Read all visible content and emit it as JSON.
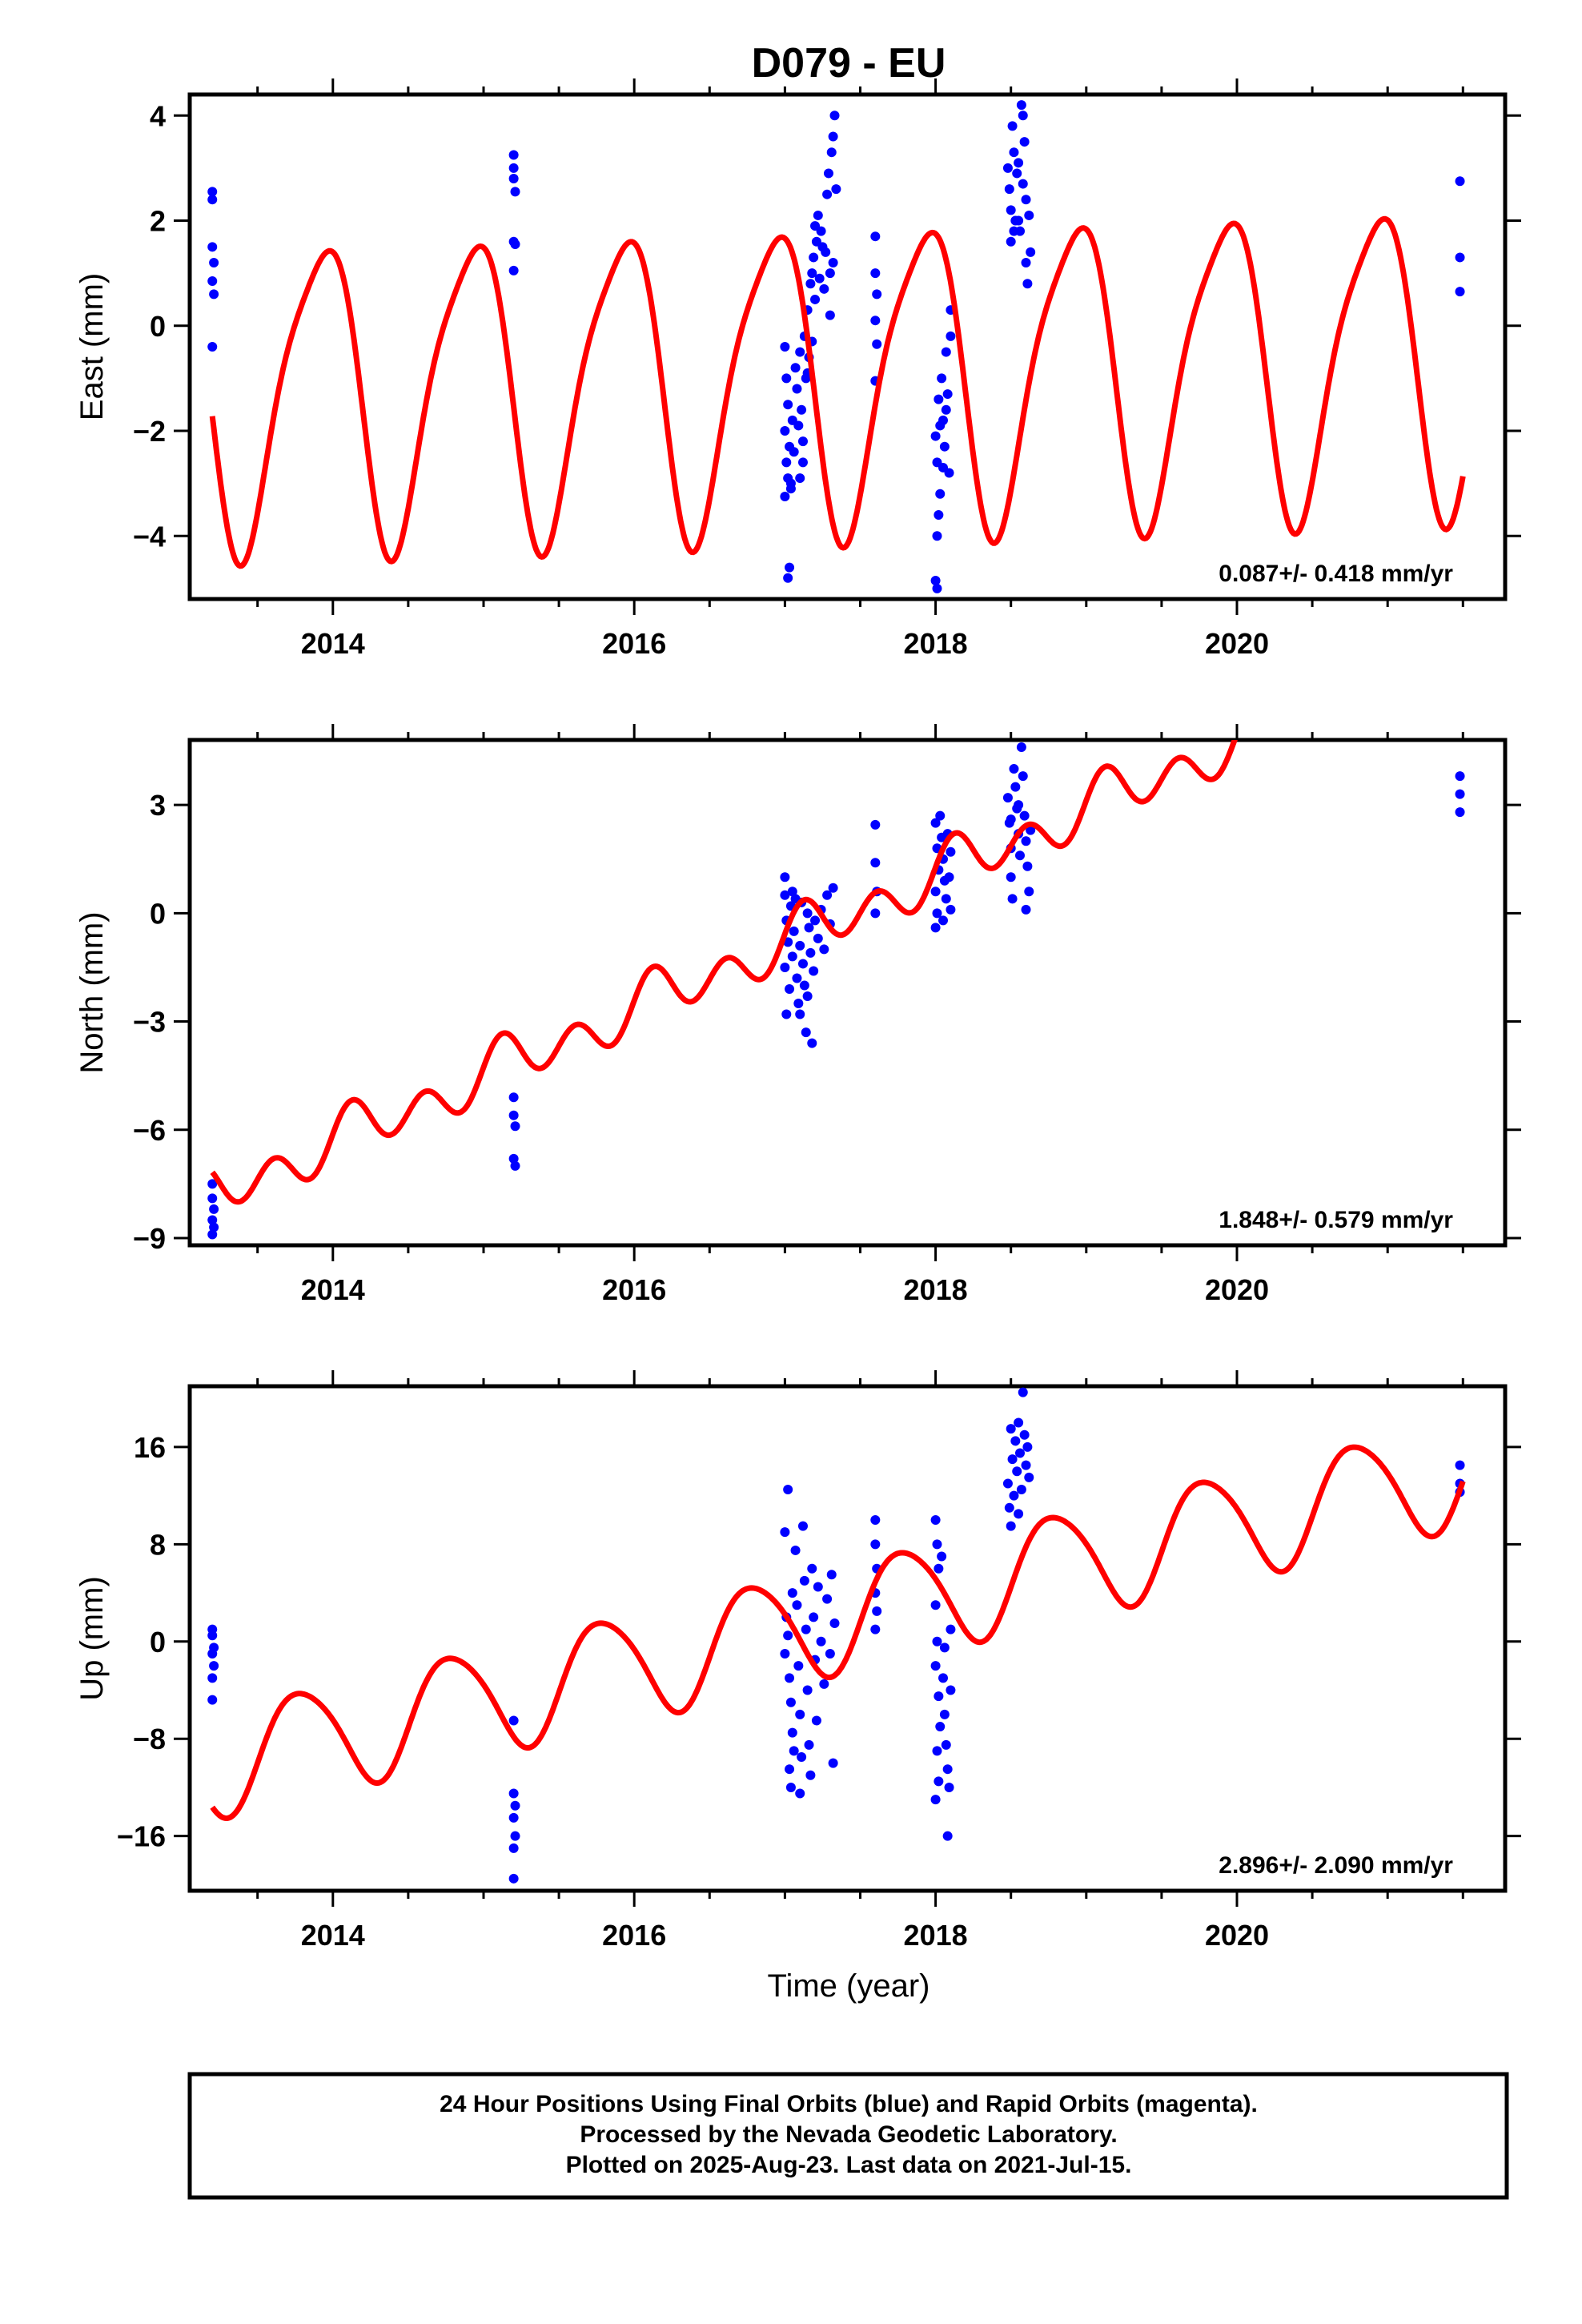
{
  "title": "D079 - EU",
  "xlabel": "Time (year)",
  "footer": {
    "line1": "24 Hour Positions Using Final Orbits (blue) and Rapid Orbits (magenta).",
    "line2": "Processed by the Nevada Geodetic Laboratory.",
    "line3": "Plotted on 2025-Aug-23. Last data on 2021-Jul-15."
  },
  "colors": {
    "points": "#0000ff",
    "model": "#ff0000",
    "frame": "#000000"
  },
  "chart_data": [
    {
      "type": "scatter",
      "ylabel": "East (mm)",
      "rate_text": "0.087+/- 0.418 mm/yr",
      "xlim": [
        2013.05,
        2021.78
      ],
      "ylim": [
        -5.2,
        4.4
      ],
      "xticks": [
        2014,
        2016,
        2018,
        2020
      ],
      "yticks": [
        4,
        2,
        0,
        -2,
        -4
      ],
      "ytick_labels": [
        "4",
        "2",
        "0",
        "−2",
        "−4"
      ],
      "model": {
        "x_start": 2013.2,
        "x_end": 2021.5,
        "offset": -0.96,
        "rate": 0.087,
        "amp_annual": 2.85,
        "phase_annual": 2.1,
        "amp_semi": 0.55,
        "phase_semi": 0.3,
        "ref_year": 2017.0
      },
      "points": [
        [
          2013.2,
          2.55
        ],
        [
          2013.2,
          2.4
        ],
        [
          2013.2,
          1.5
        ],
        [
          2013.21,
          1.2
        ],
        [
          2013.2,
          0.85
        ],
        [
          2013.21,
          0.6
        ],
        [
          2013.2,
          -0.4
        ],
        [
          2015.2,
          3.25
        ],
        [
          2015.2,
          3.0
        ],
        [
          2015.2,
          2.8
        ],
        [
          2015.21,
          2.55
        ],
        [
          2015.2,
          1.6
        ],
        [
          2015.21,
          1.55
        ],
        [
          2015.2,
          1.05
        ],
        [
          2017.0,
          -0.4
        ],
        [
          2017.01,
          -1.0
        ],
        [
          2017.02,
          -1.5
        ],
        [
          2017.0,
          -2.0
        ],
        [
          2017.03,
          -2.3
        ],
        [
          2017.01,
          -2.6
        ],
        [
          2017.02,
          -2.9
        ],
        [
          2017.04,
          -3.1
        ],
        [
          2017.0,
          -3.25
        ],
        [
          2017.05,
          -1.8
        ],
        [
          2017.06,
          -2.4
        ],
        [
          2017.03,
          -4.6
        ],
        [
          2017.02,
          -4.8
        ],
        [
          2017.04,
          -3.0
        ],
        [
          2017.07,
          -0.8
        ],
        [
          2017.08,
          -1.2
        ],
        [
          2017.09,
          -1.9
        ],
        [
          2017.1,
          -0.5
        ],
        [
          2017.11,
          -1.6
        ],
        [
          2017.12,
          -2.2
        ],
        [
          2017.13,
          -0.2
        ],
        [
          2017.14,
          -1.0
        ],
        [
          2017.15,
          0.3
        ],
        [
          2017.16,
          -0.6
        ],
        [
          2017.17,
          0.8
        ],
        [
          2017.18,
          -0.3
        ],
        [
          2017.19,
          1.3
        ],
        [
          2017.2,
          0.5
        ],
        [
          2017.21,
          1.6
        ],
        [
          2017.22,
          2.1
        ],
        [
          2017.23,
          0.9
        ],
        [
          2017.24,
          1.8
        ],
        [
          2017.25,
          1.5
        ],
        [
          2017.26,
          0.7
        ],
        [
          2017.27,
          1.4
        ],
        [
          2017.28,
          2.5
        ],
        [
          2017.29,
          2.9
        ],
        [
          2017.3,
          1.0
        ],
        [
          2017.31,
          3.3
        ],
        [
          2017.32,
          3.6
        ],
        [
          2017.33,
          4.0
        ],
        [
          2017.34,
          2.6
        ],
        [
          2017.2,
          1.9
        ],
        [
          2017.18,
          1.0
        ],
        [
          2017.15,
          -0.9
        ],
        [
          2017.12,
          -2.6
        ],
        [
          2017.1,
          -2.9
        ],
        [
          2017.3,
          0.2
        ],
        [
          2017.32,
          1.2
        ],
        [
          2017.6,
          1.7
        ],
        [
          2017.6,
          1.0
        ],
        [
          2017.61,
          0.6
        ],
        [
          2017.6,
          0.1
        ],
        [
          2017.61,
          -0.35
        ],
        [
          2017.6,
          -1.05
        ],
        [
          2018.0,
          -2.1
        ],
        [
          2018.01,
          -2.6
        ],
        [
          2018.02,
          -1.4
        ],
        [
          2018.03,
          -3.2
        ],
        [
          2018.02,
          -3.6
        ],
        [
          2018.01,
          -4.0
        ],
        [
          2018.0,
          -4.85
        ],
        [
          2018.01,
          -5.0
        ],
        [
          2018.04,
          -1.0
        ],
        [
          2018.05,
          -1.8
        ],
        [
          2018.06,
          -2.3
        ],
        [
          2018.07,
          -0.5
        ],
        [
          2018.08,
          -1.3
        ],
        [
          2018.09,
          -2.8
        ],
        [
          2018.1,
          -0.2
        ],
        [
          2018.1,
          0.3
        ],
        [
          2018.05,
          -2.7
        ],
        [
          2018.03,
          -1.9
        ],
        [
          2018.07,
          -1.6
        ],
        [
          2018.48,
          3.0
        ],
        [
          2018.49,
          2.6
        ],
        [
          2018.5,
          2.2
        ],
        [
          2018.5,
          1.6
        ],
        [
          2018.51,
          3.8
        ],
        [
          2018.52,
          3.3
        ],
        [
          2018.53,
          2.0
        ],
        [
          2018.54,
          2.9
        ],
        [
          2018.55,
          3.1
        ],
        [
          2018.56,
          1.8
        ],
        [
          2018.57,
          4.2
        ],
        [
          2018.58,
          4.0
        ],
        [
          2018.59,
          3.5
        ],
        [
          2018.6,
          2.4
        ],
        [
          2018.6,
          1.2
        ],
        [
          2018.61,
          0.8
        ],
        [
          2018.62,
          2.1
        ],
        [
          2018.63,
          1.4
        ],
        [
          2018.58,
          2.7
        ],
        [
          2018.55,
          2.0
        ],
        [
          2018.52,
          1.8
        ],
        [
          2021.48,
          2.75
        ],
        [
          2021.48,
          1.3
        ],
        [
          2021.48,
          0.65
        ]
      ]
    },
    {
      "type": "scatter",
      "ylabel": "North (mm)",
      "rate_text": "1.848+/- 0.579 mm/yr",
      "xlim": [
        2013.05,
        2021.78
      ],
      "ylim": [
        -9.2,
        4.8
      ],
      "xticks": [
        2014,
        2016,
        2018,
        2020
      ],
      "yticks": [
        3,
        0,
        -3,
        -6,
        -9
      ],
      "ytick_labels": [
        "3",
        "0",
        "−3",
        "−6",
        "−9"
      ],
      "model": {
        "x_start": 2013.2,
        "x_end": 2021.5,
        "offset": -0.8,
        "rate": 1.848,
        "amp_annual": 0.35,
        "phase_annual": 0.5,
        "amp_semi": 0.6,
        "phase_semi": 0.1,
        "ref_year": 2017.0
      },
      "points": [
        [
          2013.2,
          -7.5
        ],
        [
          2013.2,
          -7.9
        ],
        [
          2013.21,
          -8.2
        ],
        [
          2013.2,
          -8.5
        ],
        [
          2013.21,
          -8.7
        ],
        [
          2013.2,
          -8.9
        ],
        [
          2015.2,
          -5.1
        ],
        [
          2015.2,
          -5.6
        ],
        [
          2015.21,
          -5.9
        ],
        [
          2015.2,
          -6.8
        ],
        [
          2015.21,
          -7.0
        ],
        [
          2017.0,
          1.0
        ],
        [
          2017.0,
          0.5
        ],
        [
          2017.01,
          -0.2
        ],
        [
          2017.02,
          -0.8
        ],
        [
          2017.0,
          -1.5
        ],
        [
          2017.03,
          -2.1
        ],
        [
          2017.01,
          -2.8
        ],
        [
          2017.04,
          0.2
        ],
        [
          2017.05,
          -1.2
        ],
        [
          2017.06,
          -0.5
        ],
        [
          2017.07,
          0.4
        ],
        [
          2017.08,
          -1.8
        ],
        [
          2017.09,
          -2.5
        ],
        [
          2017.1,
          -0.9
        ],
        [
          2017.11,
          0.3
        ],
        [
          2017.12,
          -1.4
        ],
        [
          2017.13,
          -2.0
        ],
        [
          2017.14,
          -3.3
        ],
        [
          2017.15,
          -2.3
        ],
        [
          2017.16,
          -0.4
        ],
        [
          2017.17,
          -1.1
        ],
        [
          2017.18,
          -3.6
        ],
        [
          2017.19,
          -1.6
        ],
        [
          2017.2,
          -0.2
        ],
        [
          2017.22,
          -0.7
        ],
        [
          2017.24,
          0.1
        ],
        [
          2017.26,
          -1.0
        ],
        [
          2017.28,
          0.5
        ],
        [
          2017.3,
          -0.3
        ],
        [
          2017.32,
          0.7
        ],
        [
          2017.1,
          -2.8
        ],
        [
          2017.05,
          0.6
        ],
        [
          2017.15,
          0.0
        ],
        [
          2017.6,
          2.45
        ],
        [
          2017.6,
          1.4
        ],
        [
          2017.61,
          0.6
        ],
        [
          2017.6,
          0.0
        ],
        [
          2018.0,
          2.5
        ],
        [
          2018.01,
          1.8
        ],
        [
          2018.02,
          1.2
        ],
        [
          2018.0,
          0.6
        ],
        [
          2018.01,
          0.0
        ],
        [
          2018.0,
          -0.4
        ],
        [
          2018.03,
          2.7
        ],
        [
          2018.04,
          2.1
        ],
        [
          2018.05,
          1.5
        ],
        [
          2018.06,
          0.9
        ],
        [
          2018.07,
          0.4
        ],
        [
          2018.08,
          2.2
        ],
        [
          2018.09,
          1.0
        ],
        [
          2018.1,
          0.1
        ],
        [
          2018.1,
          1.7
        ],
        [
          2018.05,
          -0.2
        ],
        [
          2018.48,
          3.2
        ],
        [
          2018.49,
          2.5
        ],
        [
          2018.5,
          1.8
        ],
        [
          2018.5,
          1.0
        ],
        [
          2018.51,
          0.4
        ],
        [
          2018.52,
          4.0
        ],
        [
          2018.53,
          3.5
        ],
        [
          2018.54,
          2.9
        ],
        [
          2018.55,
          2.2
        ],
        [
          2018.56,
          1.6
        ],
        [
          2018.57,
          4.6
        ],
        [
          2018.58,
          3.8
        ],
        [
          2018.59,
          2.7
        ],
        [
          2018.6,
          2.0
        ],
        [
          2018.61,
          1.3
        ],
        [
          2018.62,
          0.6
        ],
        [
          2018.6,
          0.1
        ],
        [
          2018.55,
          3.0
        ],
        [
          2018.63,
          2.3
        ],
        [
          2018.5,
          2.6
        ],
        [
          2021.48,
          3.8
        ],
        [
          2021.48,
          3.3
        ],
        [
          2021.48,
          2.8
        ]
      ]
    },
    {
      "type": "scatter",
      "ylabel": "Up (mm)",
      "rate_text": "2.896+/- 2.090 mm/yr",
      "xlim": [
        2013.05,
        2021.78
      ],
      "ylim": [
        -20.5,
        21.0
      ],
      "xticks": [
        2014,
        2016,
        2018,
        2020
      ],
      "yticks": [
        16,
        8,
        0,
        -8,
        -16
      ],
      "ytick_labels": [
        "16",
        "8",
        "0",
        "−8",
        "−16"
      ],
      "model": {
        "x_start": 2013.2,
        "x_end": 2021.5,
        "offset": 1.0,
        "rate": 2.896,
        "amp_annual": 4.4,
        "phase_annual": 2.9,
        "amp_semi": 0.5,
        "phase_semi": 0.4,
        "ref_year": 2017.0
      },
      "points": [
        [
          2013.2,
          1.0
        ],
        [
          2013.2,
          0.5
        ],
        [
          2013.21,
          -0.5
        ],
        [
          2013.2,
          -1.0
        ],
        [
          2013.21,
          -2.0
        ],
        [
          2013.2,
          -3.0
        ],
        [
          2013.2,
          -4.8
        ],
        [
          2015.2,
          -6.5
        ],
        [
          2015.2,
          -12.5
        ],
        [
          2015.21,
          -13.5
        ],
        [
          2015.2,
          -14.5
        ],
        [
          2015.21,
          -16.0
        ],
        [
          2015.2,
          -17.0
        ],
        [
          2015.2,
          -19.5
        ],
        [
          2017.02,
          12.5
        ],
        [
          2017.0,
          9.0
        ],
        [
          2017.01,
          2.0
        ],
        [
          2017.02,
          0.5
        ],
        [
          2017.0,
          -1.0
        ],
        [
          2017.03,
          -3.0
        ],
        [
          2017.04,
          -5.0
        ],
        [
          2017.05,
          -7.5
        ],
        [
          2017.06,
          -9.0
        ],
        [
          2017.03,
          -10.5
        ],
        [
          2017.04,
          -12.0
        ],
        [
          2017.07,
          7.5
        ],
        [
          2017.08,
          3.0
        ],
        [
          2017.09,
          -2.0
        ],
        [
          2017.1,
          -6.0
        ],
        [
          2017.11,
          -9.5
        ],
        [
          2017.12,
          9.5
        ],
        [
          2017.13,
          5.0
        ],
        [
          2017.14,
          1.0
        ],
        [
          2017.15,
          -4.0
        ],
        [
          2017.16,
          -8.5
        ],
        [
          2017.17,
          -11.0
        ],
        [
          2017.18,
          6.0
        ],
        [
          2017.19,
          2.0
        ],
        [
          2017.2,
          -1.5
        ],
        [
          2017.21,
          -6.5
        ],
        [
          2017.22,
          4.5
        ],
        [
          2017.24,
          0.0
        ],
        [
          2017.26,
          -3.5
        ],
        [
          2017.28,
          3.5
        ],
        [
          2017.3,
          -1.0
        ],
        [
          2017.31,
          5.5
        ],
        [
          2017.32,
          -10.0
        ],
        [
          2017.33,
          1.5
        ],
        [
          2017.1,
          -12.5
        ],
        [
          2017.05,
          4.0
        ],
        [
          2017.6,
          10.0
        ],
        [
          2017.6,
          8.0
        ],
        [
          2017.61,
          6.0
        ],
        [
          2017.6,
          4.0
        ],
        [
          2017.61,
          2.5
        ],
        [
          2017.6,
          1.0
        ],
        [
          2018.0,
          10.0
        ],
        [
          2018.01,
          8.0
        ],
        [
          2018.02,
          6.0
        ],
        [
          2018.0,
          3.0
        ],
        [
          2018.01,
          0.0
        ],
        [
          2018.0,
          -2.0
        ],
        [
          2018.02,
          -4.5
        ],
        [
          2018.03,
          -7.0
        ],
        [
          2018.01,
          -9.0
        ],
        [
          2018.02,
          -11.5
        ],
        [
          2018.0,
          -13.0
        ],
        [
          2018.04,
          7.0
        ],
        [
          2018.05,
          -3.0
        ],
        [
          2018.06,
          -6.0
        ],
        [
          2018.07,
          -8.5
        ],
        [
          2018.08,
          -10.5
        ],
        [
          2018.09,
          -12.0
        ],
        [
          2018.08,
          -16.0
        ],
        [
          2018.1,
          1.0
        ],
        [
          2018.1,
          -4.0
        ],
        [
          2018.06,
          -0.5
        ],
        [
          2018.48,
          13.0
        ],
        [
          2018.49,
          11.0
        ],
        [
          2018.5,
          9.5
        ],
        [
          2018.51,
          15.0
        ],
        [
          2018.52,
          12.0
        ],
        [
          2018.53,
          16.5
        ],
        [
          2018.54,
          14.0
        ],
        [
          2018.55,
          18.0
        ],
        [
          2018.56,
          15.5
        ],
        [
          2018.57,
          12.5
        ],
        [
          2018.58,
          20.5
        ],
        [
          2018.59,
          17.0
        ],
        [
          2018.6,
          14.5
        ],
        [
          2018.61,
          16.0
        ],
        [
          2018.62,
          13.5
        ],
        [
          2018.5,
          17.5
        ],
        [
          2018.55,
          10.5
        ],
        [
          2021.48,
          14.5
        ],
        [
          2021.48,
          13.0
        ],
        [
          2021.48,
          12.3
        ]
      ]
    }
  ]
}
